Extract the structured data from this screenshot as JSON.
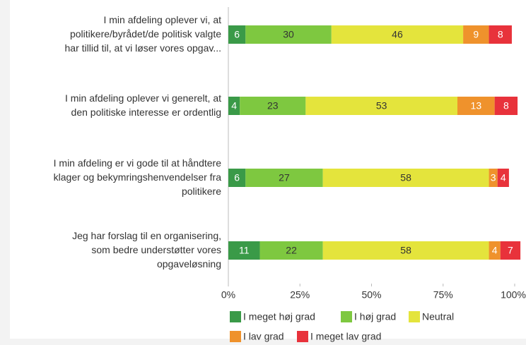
{
  "chart_data": {
    "type": "stacked_barh",
    "categories": [
      "I min afdeling oplever vi, at\npolitikere/byrådet/de politisk valgte\nhar tillid til,  at vi løser vores opgav...",
      "I min afdeling oplever vi generelt, at\nden politiske interesse er ordentlig",
      "I min afdeling er vi gode til at håndtere\nklager og bekymringshenvendelser fra\npolitikere",
      "Jeg har forslag til en organisering,\nsom bedre understøtter vores\nopgaveløsning"
    ],
    "series": [
      {
        "name": "I meget høj grad",
        "color": "#3a9a48",
        "values": [
          6,
          4,
          6,
          11
        ]
      },
      {
        "name": "I høj grad",
        "color": "#7ec840",
        "values": [
          30,
          23,
          27,
          22
        ]
      },
      {
        "name": "Neutral",
        "color": "#e4e43c",
        "values": [
          46,
          53,
          58,
          58
        ]
      },
      {
        "name": "I lav grad",
        "color": "#ef922c",
        "values": [
          9,
          13,
          3,
          4
        ]
      },
      {
        "name": "I meget lav grad",
        "color": "#e8323b",
        "values": [
          8,
          8,
          4,
          7
        ]
      }
    ],
    "xlim": [
      0,
      100
    ],
    "xticks": [
      {
        "value": 0,
        "label": "0%"
      },
      {
        "value": 25,
        "label": "25%"
      },
      {
        "value": 50,
        "label": "50%"
      },
      {
        "value": 75,
        "label": "75%"
      },
      {
        "value": 100,
        "label": "100%"
      }
    ]
  }
}
